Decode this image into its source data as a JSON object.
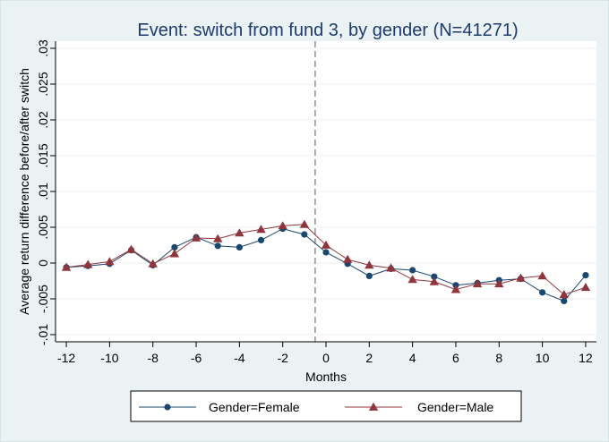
{
  "chart_data": {
    "type": "line",
    "title": "Event: switch from fund 3, by gender (N=41271)",
    "xlabel": "Months",
    "ylabel": "Average return difference before/after switch",
    "xlim": [
      -12.5,
      12.5
    ],
    "ylim": [
      -0.011,
      0.031
    ],
    "x_ticks": [
      -12,
      -10,
      -8,
      -6,
      -4,
      -2,
      0,
      2,
      4,
      6,
      8,
      10,
      12
    ],
    "x_tick_labels": [
      "-12",
      "-10",
      "-8",
      "-6",
      "-4",
      "-2",
      "0",
      "2",
      "4",
      "6",
      "8",
      "10",
      "12"
    ],
    "y_ticks": [
      -0.01,
      -0.005,
      0,
      0.005,
      0.01,
      0.015,
      0.02,
      0.025,
      0.03
    ],
    "y_tick_labels": [
      "-.01",
      "-.005",
      "0",
      ".005",
      ".01",
      ".015",
      ".02",
      ".025",
      ".03"
    ],
    "grid": true,
    "event_line_x": -0.5,
    "legend_position": "bottom",
    "x": [
      -12,
      -11,
      -10,
      -9,
      -8,
      -7,
      -6,
      -5,
      -4,
      -3,
      -2,
      -1,
      0,
      1,
      2,
      3,
      4,
      5,
      6,
      7,
      8,
      9,
      10,
      11,
      12
    ],
    "series": [
      {
        "name": "Gender=Female",
        "color": "#1a476f",
        "marker": "circle",
        "values": [
          -0.0006,
          -0.0004,
          -0.0001,
          0.0018,
          -0.0003,
          0.0022,
          0.0036,
          0.0024,
          0.0022,
          0.0032,
          0.0048,
          0.004,
          0.0015,
          -0.0001,
          -0.0018,
          -0.0008,
          -0.001,
          -0.0019,
          -0.0031,
          -0.0028,
          -0.0024,
          -0.0022,
          -0.0041,
          -0.0053,
          -0.0017
        ]
      },
      {
        "name": "Gender=Male",
        "color": "#90353b",
        "marker": "triangle",
        "values": [
          -0.0006,
          -0.0002,
          0.0002,
          0.0019,
          -0.0001,
          0.0013,
          0.0035,
          0.0034,
          0.0042,
          0.0047,
          0.0052,
          0.0054,
          0.0025,
          0.0005,
          -0.0003,
          -0.0007,
          -0.0023,
          -0.0026,
          -0.0037,
          -0.0029,
          -0.0029,
          -0.0021,
          -0.0018,
          -0.0044,
          -0.0034
        ]
      }
    ]
  }
}
